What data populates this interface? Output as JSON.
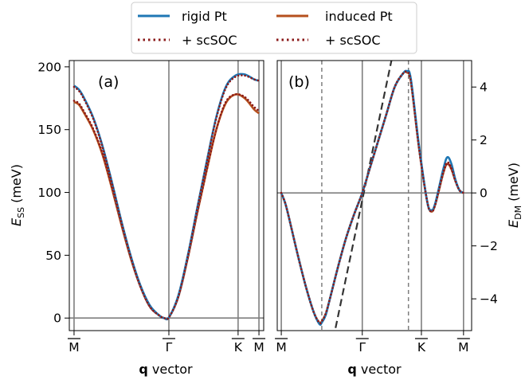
{
  "legend": {
    "entries": [
      {
        "label": "rigid Pt",
        "color": "#1f77b4",
        "style": "solid"
      },
      {
        "label": "+ scSOC",
        "color": "#8b1a1a",
        "style": "dotted"
      },
      {
        "label": "induced Pt",
        "color": "#b5501e",
        "style": "solid"
      },
      {
        "label": "+ scSOC",
        "color": "#8b1a1a",
        "style": "dotted"
      }
    ]
  },
  "colors": {
    "rigid": "#1f77b4",
    "induced": "#b5501e",
    "scsoc": "#8b1a1a",
    "guide": "#7f7f7f",
    "dashed_line": "#333333"
  },
  "chart_data": [
    {
      "type": "line",
      "panel_label": "(a)",
      "ylabel_main": "E",
      "ylabel_sub": "SS",
      "ylabel_unit": "(meV)",
      "xlabel_bold": "q",
      "xlabel_rest": " vector",
      "xticks": [
        {
          "pos": 0,
          "label": "M"
        },
        {
          "pos": 1,
          "label": "Γ"
        },
        {
          "pos": 1.73,
          "label": "K"
        },
        {
          "pos": 1.95,
          "label": "M"
        }
      ],
      "xlim": [
        -0.05,
        2.0
      ],
      "ylim": [
        -10,
        205
      ],
      "yticks": [
        0,
        50,
        100,
        150,
        200
      ],
      "series": [
        {
          "name": "rigid Pt",
          "style": "solid",
          "color": "#1f77b4",
          "points": [
            [
              0,
              185
            ],
            [
              0.05,
              182
            ],
            [
              0.1,
              176
            ],
            [
              0.2,
              160
            ],
            [
              0.3,
              137
            ],
            [
              0.4,
              108
            ],
            [
              0.5,
              77
            ],
            [
              0.6,
              49
            ],
            [
              0.7,
              26
            ],
            [
              0.8,
              10
            ],
            [
              0.9,
              2
            ],
            [
              0.95,
              0
            ],
            [
              1.0,
              0.5
            ],
            [
              1.1,
              18
            ],
            [
              1.2,
              50
            ],
            [
              1.3,
              88
            ],
            [
              1.4,
              125
            ],
            [
              1.5,
              160
            ],
            [
              1.6,
              184
            ],
            [
              1.7,
              193
            ],
            [
              1.8,
              194
            ],
            [
              1.9,
              190
            ],
            [
              1.95,
              189
            ]
          ]
        },
        {
          "name": "+ scSOC",
          "style": "dotted",
          "color": "#8b1a1a",
          "points": [
            [
              0,
              184
            ],
            [
              0.05,
              181
            ],
            [
              0.1,
              175
            ],
            [
              0.2,
              159
            ],
            [
              0.3,
              136
            ],
            [
              0.4,
              107
            ],
            [
              0.5,
              76
            ],
            [
              0.6,
              48
            ],
            [
              0.7,
              25
            ],
            [
              0.8,
              9
            ],
            [
              0.9,
              2
            ],
            [
              0.95,
              0
            ],
            [
              1.0,
              0.5
            ],
            [
              1.1,
              17
            ],
            [
              1.2,
              49
            ],
            [
              1.3,
              87
            ],
            [
              1.4,
              124
            ],
            [
              1.5,
              159
            ],
            [
              1.6,
              183
            ],
            [
              1.7,
              192
            ],
            [
              1.8,
              193
            ],
            [
              1.9,
              190
            ],
            [
              1.95,
              189
            ]
          ]
        },
        {
          "name": "induced Pt",
          "style": "solid",
          "color": "#b5501e",
          "points": [
            [
              0,
              172
            ],
            [
              0.05,
              170
            ],
            [
              0.1,
              164
            ],
            [
              0.2,
              150
            ],
            [
              0.3,
              130
            ],
            [
              0.4,
              103
            ],
            [
              0.5,
              74
            ],
            [
              0.6,
              47
            ],
            [
              0.7,
              25
            ],
            [
              0.8,
              9
            ],
            [
              0.9,
              2
            ],
            [
              0.95,
              0
            ],
            [
              1.0,
              0.5
            ],
            [
              1.1,
              17
            ],
            [
              1.2,
              48
            ],
            [
              1.3,
              84
            ],
            [
              1.4,
              118
            ],
            [
              1.5,
              150
            ],
            [
              1.6,
              171
            ],
            [
              1.7,
              178
            ],
            [
              1.8,
              175
            ],
            [
              1.9,
              166
            ],
            [
              1.95,
              163
            ]
          ]
        },
        {
          "name": "+ scSOC",
          "style": "dotted",
          "color": "#8b1a1a",
          "points": [
            [
              0,
              173
            ],
            [
              0.05,
              171
            ],
            [
              0.1,
              165
            ],
            [
              0.2,
              151
            ],
            [
              0.3,
              131
            ],
            [
              0.4,
              104
            ],
            [
              0.5,
              75
            ],
            [
              0.6,
              48
            ],
            [
              0.7,
              25
            ],
            [
              0.8,
              9
            ],
            [
              0.9,
              2
            ],
            [
              0.95,
              0
            ],
            [
              1.0,
              0.5
            ],
            [
              1.1,
              17
            ],
            [
              1.2,
              48
            ],
            [
              1.3,
              84
            ],
            [
              1.4,
              118
            ],
            [
              1.5,
              150
            ],
            [
              1.6,
              172
            ],
            [
              1.7,
              178
            ],
            [
              1.8,
              176
            ],
            [
              1.9,
              168
            ],
            [
              1.95,
              165
            ]
          ]
        }
      ]
    },
    {
      "type": "line",
      "panel_label": "(b)",
      "ylabel_main": "E",
      "ylabel_sub": "DM",
      "ylabel_unit": "(meV)",
      "xlabel_bold": "q",
      "xlabel_rest": " vector",
      "xticks": [
        {
          "pos": 0,
          "label": "M"
        },
        {
          "pos": 1,
          "label": "Γ"
        },
        {
          "pos": 1.73,
          "label": "K"
        },
        {
          "pos": 2.25,
          "label": "M"
        }
      ],
      "xlim": [
        -0.05,
        2.35
      ],
      "ylim": [
        -5.2,
        5.0
      ],
      "yticks": [
        -4,
        -2,
        0,
        2,
        4
      ],
      "ytick_labels": [
        "−4",
        "−2",
        "0",
        "2",
        "4"
      ],
      "guides_dashed_x": [
        0.5,
        1.57
      ],
      "dashed_linear": {
        "x": [
          0.67,
          1.36
        ],
        "y": [
          -5.1,
          5.0
        ]
      },
      "series": [
        {
          "name": "rigid Pt",
          "style": "solid",
          "color": "#1f77b4",
          "points": [
            [
              0,
              0
            ],
            [
              0.05,
              -0.4
            ],
            [
              0.1,
              -1.0
            ],
            [
              0.2,
              -2.3
            ],
            [
              0.3,
              -3.5
            ],
            [
              0.4,
              -4.5
            ],
            [
              0.47,
              -4.95
            ],
            [
              0.5,
              -4.9
            ],
            [
              0.55,
              -4.6
            ],
            [
              0.6,
              -4.0
            ],
            [
              0.7,
              -2.8
            ],
            [
              0.8,
              -1.7
            ],
            [
              0.9,
              -0.8
            ],
            [
              1.0,
              0
            ],
            [
              1.1,
              1.0
            ],
            [
              1.2,
              2.0
            ],
            [
              1.3,
              3.0
            ],
            [
              1.4,
              4.0
            ],
            [
              1.5,
              4.5
            ],
            [
              1.55,
              4.6
            ],
            [
              1.6,
              4.3
            ],
            [
              1.7,
              1.8
            ],
            [
              1.8,
              -0.3
            ],
            [
              1.85,
              -0.65
            ],
            [
              1.9,
              -0.4
            ],
            [
              2.0,
              0.9
            ],
            [
              2.05,
              1.35
            ],
            [
              2.1,
              1.1
            ],
            [
              2.15,
              0.5
            ],
            [
              2.2,
              0.1
            ],
            [
              2.25,
              0.0
            ]
          ]
        },
        {
          "name": "+ scSOC",
          "style": "dotted",
          "color": "#8b1a1a",
          "points": [
            [
              0,
              0
            ],
            [
              0.05,
              -0.4
            ],
            [
              0.1,
              -1.0
            ],
            [
              0.2,
              -2.3
            ],
            [
              0.3,
              -3.5
            ],
            [
              0.4,
              -4.5
            ],
            [
              0.47,
              -4.9
            ],
            [
              0.5,
              -4.85
            ],
            [
              0.55,
              -4.55
            ],
            [
              0.6,
              -4.0
            ],
            [
              0.7,
              -2.8
            ],
            [
              0.8,
              -1.7
            ],
            [
              0.9,
              -0.8
            ],
            [
              1.0,
              0
            ],
            [
              1.1,
              1.0
            ],
            [
              1.2,
              2.0
            ],
            [
              1.3,
              3.0
            ],
            [
              1.4,
              4.0
            ],
            [
              1.5,
              4.5
            ],
            [
              1.55,
              4.55
            ],
            [
              1.6,
              4.2
            ],
            [
              1.7,
              1.7
            ],
            [
              1.8,
              -0.3
            ],
            [
              1.85,
              -0.7
            ],
            [
              1.9,
              -0.45
            ],
            [
              2.0,
              0.8
            ],
            [
              2.05,
              1.15
            ],
            [
              2.1,
              0.95
            ],
            [
              2.15,
              0.45
            ],
            [
              2.2,
              0.1
            ],
            [
              2.25,
              0.0
            ]
          ]
        },
        {
          "name": "induced Pt",
          "style": "solid",
          "color": "#b5501e",
          "points": [
            [
              0,
              0
            ],
            [
              0.05,
              -0.4
            ],
            [
              0.1,
              -1.0
            ],
            [
              0.2,
              -2.3
            ],
            [
              0.3,
              -3.5
            ],
            [
              0.4,
              -4.5
            ],
            [
              0.47,
              -4.9
            ],
            [
              0.5,
              -4.85
            ],
            [
              0.55,
              -4.55
            ],
            [
              0.6,
              -4.0
            ],
            [
              0.7,
              -2.8
            ],
            [
              0.8,
              -1.7
            ],
            [
              0.9,
              -0.8
            ],
            [
              1.0,
              0
            ],
            [
              1.1,
              1.0
            ],
            [
              1.2,
              2.0
            ],
            [
              1.3,
              3.0
            ],
            [
              1.4,
              4.0
            ],
            [
              1.5,
              4.5
            ],
            [
              1.55,
              4.55
            ],
            [
              1.6,
              4.2
            ],
            [
              1.7,
              1.7
            ],
            [
              1.8,
              -0.3
            ],
            [
              1.85,
              -0.7
            ],
            [
              1.9,
              -0.45
            ],
            [
              2.0,
              0.75
            ],
            [
              2.05,
              1.1
            ],
            [
              2.1,
              0.9
            ],
            [
              2.15,
              0.45
            ],
            [
              2.2,
              0.1
            ],
            [
              2.25,
              0.0
            ]
          ]
        },
        {
          "name": "+ scSOC",
          "style": "dotted",
          "color": "#8b1a1a",
          "points": [
            [
              0,
              0
            ],
            [
              0.05,
              -0.4
            ],
            [
              0.1,
              -1.0
            ],
            [
              0.2,
              -2.3
            ],
            [
              0.3,
              -3.5
            ],
            [
              0.4,
              -4.5
            ],
            [
              0.47,
              -4.9
            ],
            [
              0.5,
              -4.85
            ],
            [
              0.55,
              -4.55
            ],
            [
              0.6,
              -4.0
            ],
            [
              0.7,
              -2.8
            ],
            [
              0.8,
              -1.7
            ],
            [
              0.9,
              -0.8
            ],
            [
              1.0,
              0
            ],
            [
              1.1,
              1.0
            ],
            [
              1.2,
              2.0
            ],
            [
              1.3,
              3.0
            ],
            [
              1.4,
              4.0
            ],
            [
              1.5,
              4.5
            ],
            [
              1.55,
              4.55
            ],
            [
              1.6,
              4.2
            ],
            [
              1.7,
              1.7
            ],
            [
              1.8,
              -0.3
            ],
            [
              1.85,
              -0.7
            ],
            [
              1.9,
              -0.45
            ],
            [
              2.0,
              0.75
            ],
            [
              2.05,
              1.1
            ],
            [
              2.1,
              0.9
            ],
            [
              2.15,
              0.45
            ],
            [
              2.2,
              0.1
            ],
            [
              2.25,
              0.0
            ]
          ]
        }
      ]
    }
  ]
}
